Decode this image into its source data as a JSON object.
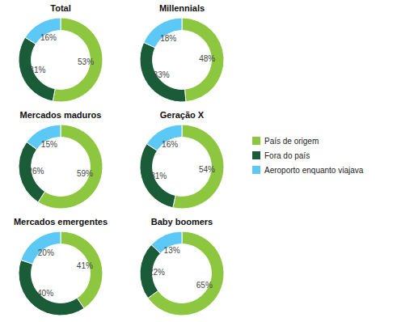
{
  "chart_data": [
    {
      "type": "pie",
      "title": "Total",
      "categories": [
        "País de origem",
        "Fora do país",
        "Aeroporto enquanto viajava"
      ],
      "values": [
        53,
        31,
        16
      ],
      "value_labels": [
        "53%",
        "31%",
        "16%"
      ],
      "colors": [
        "#8dc63f",
        "#1a5c38",
        "#5bc8f5"
      ],
      "data_labels": true,
      "legend": "right"
    },
    {
      "type": "pie",
      "title": "Millennials",
      "values": [
        48,
        33,
        18
      ],
      "value_labels": [
        "48%",
        "33%",
        "18%"
      ],
      "colors": [
        "#8dc63f",
        "#1a5c38",
        "#5bc8f5"
      ],
      "data_labels": true
    },
    {
      "type": "pie",
      "title": "Mercados maduros",
      "values": [
        59,
        26,
        15
      ],
      "value_labels": [
        "59%",
        "26%",
        "15%"
      ],
      "colors": [
        "#8dc63f",
        "#1a5c38",
        "#5bc8f5"
      ],
      "data_labels": true
    },
    {
      "type": "pie",
      "title": "Geração X",
      "values": [
        54,
        31,
        16
      ],
      "value_labels": [
        "54%",
        "31%",
        "16%"
      ],
      "colors": [
        "#8dc63f",
        "#1a5c38",
        "#5bc8f5"
      ],
      "data_labels": true
    },
    {
      "type": "pie",
      "title": "Mercados emergentes",
      "values": [
        41,
        40,
        20
      ],
      "value_labels": [
        "41%",
        "40%",
        "20%"
      ],
      "colors": [
        "#8dc63f",
        "#1a5c38",
        "#5bc8f5"
      ],
      "data_labels": true
    },
    {
      "type": "pie",
      "title": "Baby boomers",
      "values": [
        65,
        22,
        13
      ],
      "value_labels": [
        "65%",
        "22%",
        "13%"
      ],
      "colors": [
        "#8dc63f",
        "#1a5c38",
        "#5bc8f5"
      ],
      "data_labels": true
    }
  ]
}
